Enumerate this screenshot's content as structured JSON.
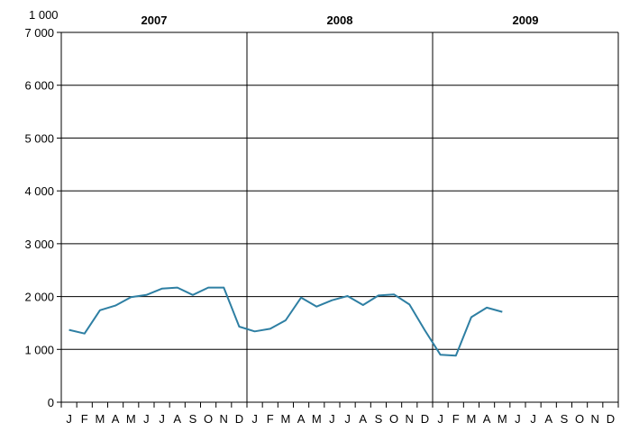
{
  "chart_data": {
    "type": "line",
    "unit_label": "1 000",
    "years": [
      "2007",
      "2008",
      "2009"
    ],
    "month_labels": [
      "J",
      "F",
      "M",
      "A",
      "M",
      "J",
      "J",
      "A",
      "S",
      "O",
      "N",
      "D"
    ],
    "y_ticks": [
      "0",
      "1 000",
      "2 000",
      "3 000",
      "4 000",
      "5 000",
      "6 000",
      "7 000"
    ],
    "ylim": [
      0,
      7000
    ],
    "grid": true,
    "line_color": "#2e7fa3",
    "series": [
      {
        "values": [
          1370,
          1300,
          1740,
          1830,
          1990,
          2030,
          2150,
          2170,
          2030,
          2170,
          2170,
          1430,
          1340,
          1390,
          1550,
          1980,
          1810,
          1930,
          2010,
          1840,
          2020,
          2040,
          1850,
          1360,
          900,
          880,
          1610,
          1790,
          1710
        ]
      }
    ]
  }
}
